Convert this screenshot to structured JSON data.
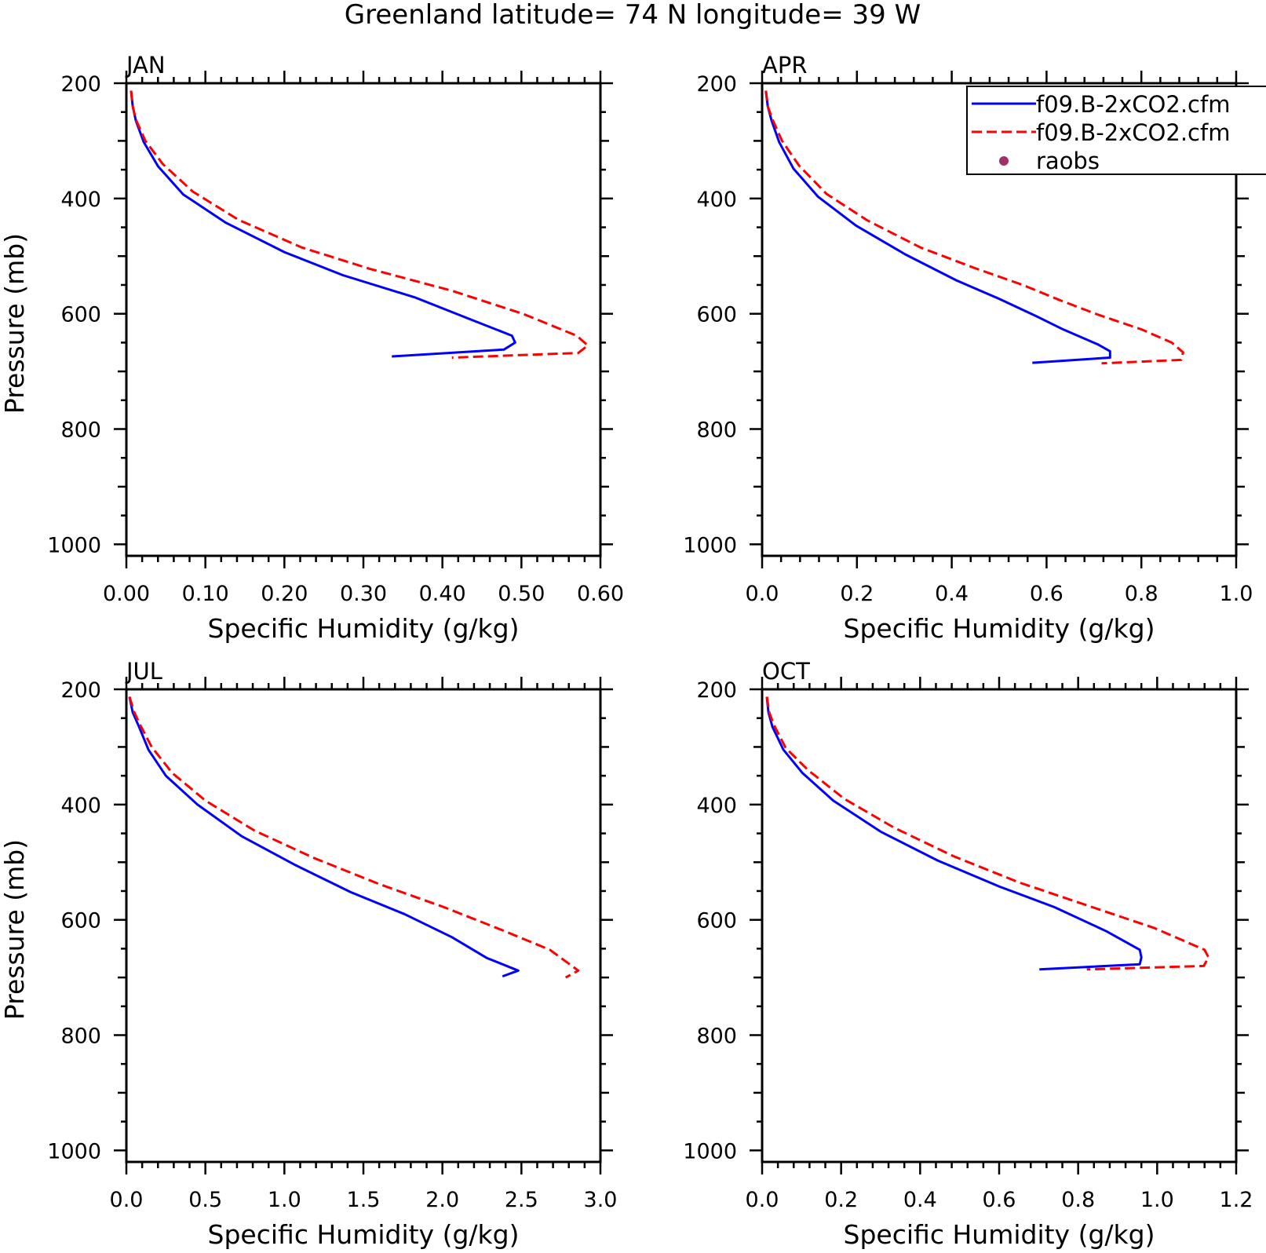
{
  "figure": {
    "title": "Greenland  latitude= 74 N longitude= 39 W"
  },
  "legend": {
    "placement": "top-right of APR panel",
    "entries": [
      {
        "label": "f09.B-2xCO2.cfm",
        "style": "solid",
        "color": "#0000ff"
      },
      {
        "label": "f09.B-2xCO2.cfm",
        "style": "dashed",
        "color": "#ff0000"
      },
      {
        "label": "raobs",
        "style": "marker",
        "color": "#a0306a"
      }
    ]
  },
  "chart_data": [
    {
      "type": "line",
      "title": "JAN",
      "xlabel": "Specific Humidity (g/kg)",
      "ylabel": "Pressure (mb)",
      "xlim": [
        0,
        0.6
      ],
      "ylim": [
        200,
        1000
      ],
      "y_inverted": true,
      "xticks": [
        "0.00",
        "0.10",
        "0.20",
        "0.30",
        "0.40",
        "0.50",
        "0.60"
      ],
      "yticks": [
        "200",
        "400",
        "600",
        "800",
        "1000"
      ],
      "grid": false,
      "series": [
        {
          "name": "f09.B-2xCO2.cfm",
          "color": "#0000ff",
          "style": "solid",
          "x": [
            0.006,
            0.008,
            0.012,
            0.022,
            0.04,
            0.072,
            0.126,
            0.2,
            0.274,
            0.366,
            0.436,
            0.488,
            0.492,
            0.478,
            0.336
          ],
          "y": [
            213,
            240,
            265,
            302,
            344,
            393,
            442,
            493,
            533,
            572,
            610,
            638,
            650,
            662,
            674
          ]
        },
        {
          "name": "f09.B-2xCO2.cfm",
          "color": "#ff0000",
          "style": "dashed",
          "x": [
            0.006,
            0.008,
            0.012,
            0.024,
            0.046,
            0.084,
            0.142,
            0.222,
            0.308,
            0.412,
            0.502,
            0.57,
            0.584,
            0.572,
            0.412
          ],
          "y": [
            213,
            240,
            263,
            300,
            340,
            388,
            437,
            485,
            522,
            560,
            600,
            638,
            655,
            668,
            676
          ]
        }
      ]
    },
    {
      "type": "line",
      "title": "APR",
      "xlabel": "Specific Humidity (g/kg)",
      "ylabel": "",
      "xlim": [
        0,
        1.0
      ],
      "ylim": [
        200,
        1000
      ],
      "y_inverted": true,
      "xticks": [
        "0.0",
        "0.2",
        "0.4",
        "0.6",
        "0.8",
        "1.0"
      ],
      "yticks": [
        "200",
        "400",
        "600",
        "800",
        "1000"
      ],
      "grid": false,
      "series": [
        {
          "name": "f09.B-2xCO2.cfm",
          "color": "#0000ff",
          "style": "solid",
          "x": [
            0.008,
            0.012,
            0.02,
            0.036,
            0.066,
            0.118,
            0.198,
            0.302,
            0.41,
            0.5,
            0.578,
            0.632,
            0.708,
            0.734,
            0.734,
            0.57
          ],
          "y": [
            213,
            240,
            265,
            302,
            348,
            397,
            447,
            497,
            542,
            574,
            604,
            626,
            653,
            665,
            676,
            685
          ]
        },
        {
          "name": "f09.B-2xCO2.cfm",
          "color": "#ff0000",
          "style": "dashed",
          "x": [
            0.008,
            0.012,
            0.022,
            0.042,
            0.078,
            0.136,
            0.222,
            0.334,
            0.446,
            0.55,
            0.63,
            0.71,
            0.8,
            0.864,
            0.888,
            0.884,
            0.716
          ],
          "y": [
            213,
            240,
            263,
            300,
            343,
            392,
            438,
            485,
            520,
            550,
            577,
            602,
            627,
            650,
            667,
            680,
            686
          ]
        }
      ]
    },
    {
      "type": "line",
      "title": "JUL",
      "xlabel": "Specific Humidity (g/kg)",
      "ylabel": "Pressure (mb)",
      "xlim": [
        0,
        3.0
      ],
      "ylim": [
        200,
        1000
      ],
      "y_inverted": true,
      "xticks": [
        "0.0",
        "0.5",
        "1.0",
        "1.5",
        "2.0",
        "2.5",
        "3.0"
      ],
      "yticks": [
        "200",
        "400",
        "600",
        "800",
        "1000"
      ],
      "grid": false,
      "series": [
        {
          "name": "f09.B-2xCO2.cfm",
          "color": "#0000ff",
          "style": "solid",
          "x": [
            0.02,
            0.04,
            0.08,
            0.14,
            0.25,
            0.45,
            0.73,
            1.07,
            1.42,
            1.76,
            2.06,
            2.28,
            2.48,
            2.38
          ],
          "y": [
            213,
            240,
            265,
            305,
            350,
            400,
            455,
            505,
            552,
            590,
            630,
            666,
            688,
            698
          ]
        },
        {
          "name": "f09.B-2xCO2.cfm",
          "color": "#ff0000",
          "style": "dashed",
          "x": [
            0.02,
            0.05,
            0.09,
            0.16,
            0.29,
            0.5,
            0.81,
            1.19,
            1.6,
            2.01,
            2.37,
            2.68,
            2.86,
            2.78
          ],
          "y": [
            213,
            240,
            263,
            300,
            345,
            393,
            445,
            493,
            538,
            578,
            617,
            652,
            688,
            700
          ]
        }
      ]
    },
    {
      "type": "line",
      "title": "OCT",
      "xlabel": "Specific Humidity (g/kg)",
      "ylabel": "",
      "xlim": [
        0,
        1.2
      ],
      "ylim": [
        200,
        1000
      ],
      "y_inverted": true,
      "xticks": [
        "0.0",
        "0.2",
        "0.4",
        "0.6",
        "0.8",
        "1.0",
        "1.2"
      ],
      "yticks": [
        "200",
        "400",
        "600",
        "800",
        "1000"
      ],
      "grid": false,
      "series": [
        {
          "name": "f09.B-2xCO2.cfm",
          "color": "#0000ff",
          "style": "solid",
          "x": [
            0.012,
            0.016,
            0.026,
            0.054,
            0.102,
            0.18,
            0.3,
            0.444,
            0.6,
            0.74,
            0.872,
            0.956,
            0.96,
            0.956,
            0.702
          ],
          "y": [
            213,
            240,
            265,
            305,
            345,
            393,
            447,
            497,
            542,
            578,
            620,
            652,
            665,
            677,
            686
          ]
        },
        {
          "name": "f09.B-2xCO2.cfm",
          "color": "#ff0000",
          "style": "dashed",
          "x": [
            0.012,
            0.018,
            0.03,
            0.06,
            0.116,
            0.208,
            0.334,
            0.486,
            0.65,
            0.81,
            0.992,
            1.12,
            1.13,
            1.118,
            0.822
          ],
          "y": [
            213,
            240,
            262,
            302,
            340,
            390,
            440,
            490,
            535,
            572,
            614,
            652,
            665,
            680,
            686
          ]
        }
      ]
    }
  ]
}
